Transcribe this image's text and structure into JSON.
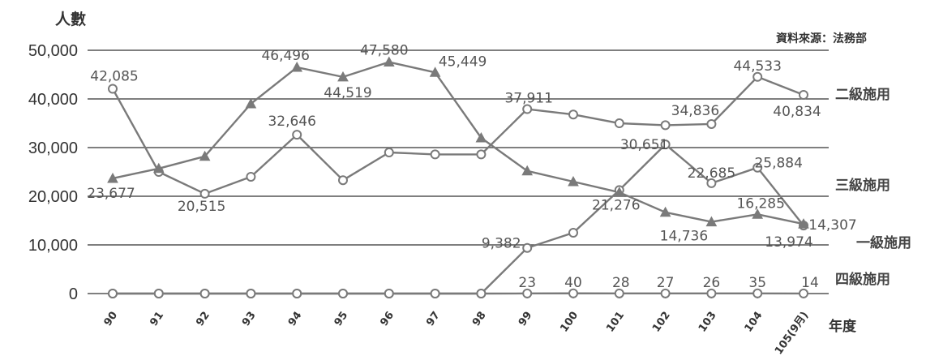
{
  "chart_data": {
    "type": "line",
    "ylabel": "人數",
    "xlabel": "年度",
    "source": "資料來源：法務部",
    "ylim": [
      0,
      50000
    ],
    "yticks": [
      "0",
      "10,000",
      "20,000",
      "30,000",
      "40,000",
      "50,000"
    ],
    "categories": [
      "90",
      "91",
      "92",
      "93",
      "94",
      "95",
      "96",
      "97",
      "98",
      "99",
      "100",
      "101",
      "102",
      "103",
      "104",
      "105(9月)"
    ],
    "grid": true,
    "series": [
      {
        "name": "二級施用",
        "marker": "circle",
        "values": [
          42085,
          25000,
          20515,
          24000,
          32646,
          23300,
          29000,
          28600,
          28600,
          37911,
          36800,
          35000,
          34600,
          34836,
          44533,
          40834
        ],
        "labels": [
          "42,085",
          "",
          "20,515",
          "",
          "32,646",
          "",
          "",
          "",
          "",
          "37,911",
          "",
          "",
          "",
          "34,836",
          "44,533",
          "40,834"
        ]
      },
      {
        "name": "三級施用",
        "marker": "circle",
        "values": [
          0,
          0,
          0,
          0,
          0,
          0,
          0,
          0,
          0,
          9382,
          12500,
          21276,
          30651,
          22685,
          25884,
          13974
        ],
        "labels": [
          "",
          "",
          "",
          "",
          "",
          "",
          "",
          "",
          "",
          "9,382",
          "",
          "21,276",
          "30,651",
          "22,685",
          "25,884",
          "13,974"
        ]
      },
      {
        "name": "一級施用",
        "marker": "triangle",
        "values": [
          23677,
          25700,
          28200,
          39000,
          46496,
          44519,
          47580,
          45449,
          32000,
          25200,
          23000,
          20800,
          16700,
          14736,
          16285,
          14307
        ],
        "labels": [
          "23,677",
          "",
          "",
          "",
          "46,496",
          "44,519",
          "47,580",
          "45,449",
          "",
          "",
          "",
          "",
          "",
          "14,736",
          "16,285",
          "14,307"
        ]
      },
      {
        "name": "四級施用",
        "marker": "circle",
        "values": [
          0,
          0,
          0,
          0,
          0,
          0,
          0,
          0,
          0,
          23,
          40,
          28,
          27,
          26,
          35,
          14
        ],
        "labels": [
          "",
          "",
          "",
          "",
          "",
          "",
          "",
          "",
          "",
          "23",
          "40",
          "28",
          "27",
          "26",
          "35",
          "14"
        ]
      }
    ]
  },
  "colors": {
    "line": "#7a7a7a",
    "grid": "#555555",
    "text": "#333333"
  }
}
